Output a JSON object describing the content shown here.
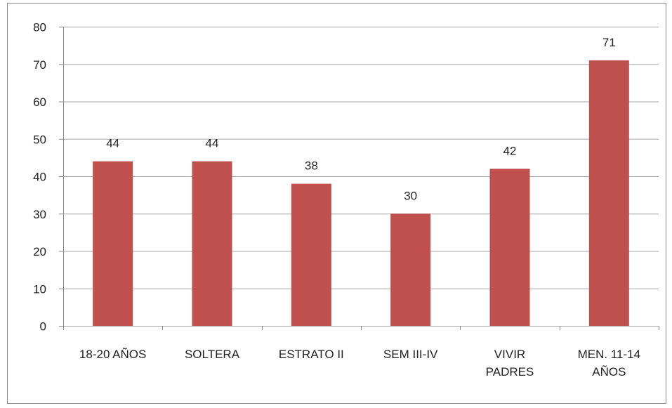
{
  "chart_data": {
    "type": "bar",
    "categories": [
      "18-20 AÑOS",
      "SOLTERA",
      "ESTRATO II",
      "SEM III-IV",
      "VIVIR PADRES",
      "MEN. 11-14 AÑOS"
    ],
    "values": [
      44,
      44,
      38,
      30,
      42,
      71
    ],
    "color": "#c0504d",
    "ylim": [
      0,
      80
    ],
    "yticks": [
      0,
      10,
      20,
      30,
      40,
      50,
      60,
      70,
      80
    ],
    "grid": true
  }
}
